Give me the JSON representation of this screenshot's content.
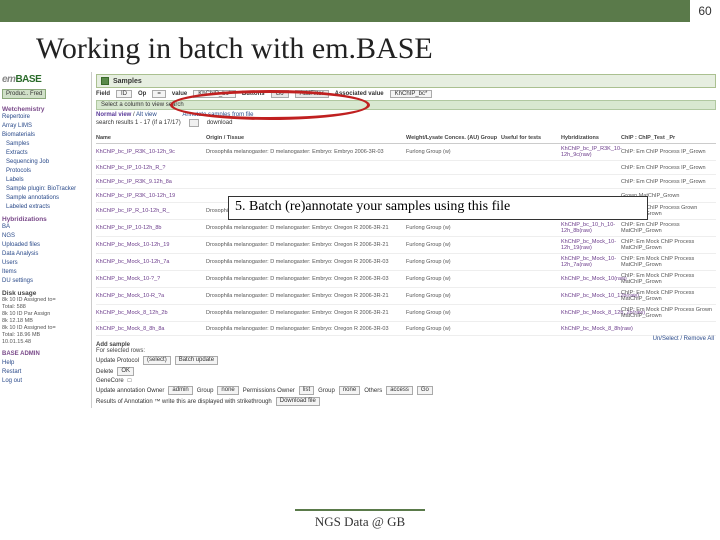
{
  "slide": {
    "number": "60",
    "title": "Working in batch with em.BASE",
    "footer": "NGS Data @ GB",
    "accent_color": "#5a7a4a"
  },
  "callout": "5. Batch (re)annotate your samples using this file",
  "logo": {
    "prefix": "em",
    "suffix": "BASE"
  },
  "sidebar": {
    "button": "Produc.. Fred",
    "groups": [
      {
        "label": "Wetchemistry",
        "items": [
          "Repertoire",
          "Array LIMS",
          "Biomaterials"
        ]
      },
      {
        "label": "",
        "items": [
          "Samples",
          "Extracts",
          "Sequencing Job",
          "Protocols",
          "Labels",
          "Sample plugin: BioTracker",
          "Sample annotations",
          "Labeled extracts"
        ]
      },
      {
        "label": "Hybridizations",
        "items": [
          "BA",
          "NGS",
          "Uploaded files",
          "Data Analysis"
        ]
      },
      {
        "label": "",
        "items": [
          "Users",
          "Items",
          "DU settings"
        ]
      }
    ],
    "info_title": "Disk usage",
    "info_lines": [
      "8k 10 ID Assigned to=",
      "Total: 588",
      "8k 10 ID Par Assign",
      "8k 12.18 MB",
      "8k 10 ID Assigned to=",
      "Total: 18.96 MB",
      "10.01.15.48"
    ],
    "bottom": [
      "BASE ADMIN",
      "Help",
      "Restart",
      "Log out"
    ]
  },
  "content": {
    "crumb": "Samples",
    "filters": {
      "field_label": "Field",
      "field_value": "ID",
      "op_label": "Op",
      "op_value": "=",
      "value_label": "value",
      "value_value": "KhChIP_bc*",
      "buttons_label": "Buttons",
      "btn1": "Go",
      "btn2": "AddFilter",
      "assoc_label": "Associated value",
      "assoc_value": "KhChIP_bc*"
    },
    "hint": "Select a column to view search",
    "view": {
      "normal": "Normal view",
      "sep": "/",
      "alt": "Alt view",
      "annotate": "Annotate samples from file",
      "results": "search results 1 - 17 (if a 17/17)",
      "download": "download"
    },
    "columns": [
      "Name",
      "Origin / Tissue",
      "Weight/Lysate Conces. (AU) Group",
      "Useful for tests",
      "Hybridizations",
      "ChIP : ChIP_Test _Pr"
    ],
    "rows": [
      {
        "name": "KhChIP_bc_IP_R3K_10-12h_9c",
        "origin": "Drosophila melanogaster: D melanogaster: Embryo: Embryo 2006-3R-03",
        "group": "Furlong Group (w)",
        "tests": "",
        "hyb": "KhChIP_bc_IP_R3K_10-12h_9c(raw)",
        "pr": "ChIP: Em ChIP Process IP_Grown"
      },
      {
        "name": "KhChIP_bc_IP_10-12h_R_?",
        "origin": "",
        "group": "",
        "tests": "",
        "hyb": "",
        "pr": "ChIP: Em ChIP Process IP_Grown"
      },
      {
        "name": "KhChIP_bc_IP_R3K_9.12h_8a",
        "origin": "",
        "group": "",
        "tests": "",
        "hyb": "",
        "pr": "ChIP: Em ChIP Process IP_Grown"
      },
      {
        "name": "KhChIP_bc_IP_R3K_10-12h_19",
        "origin": "",
        "group": "",
        "tests": "",
        "hyb": "",
        "pr": "Grown MatChIP_Grown"
      },
      {
        "name": "KhChIP_bc_IP_R_10-12h_R_",
        "origin": "Drosophila melanogaster: D melanogaster: Embryo: Embryo 2006-3R-03",
        "group": "Furlong Group (w)",
        "tests": "",
        "hyb": "KhChIP_bc_10_h_10-12h_R(raw)",
        "pr": "ChIP: Em ChIP Process Grown MatChIP_Grown"
      },
      {
        "name": "KhChIP_bc_IP_10-12h_8b",
        "origin": "Drosophila melanogaster: D melanogaster: Embryo: Oregon R 2006-3R-21",
        "group": "Furlong Group (w)",
        "tests": "",
        "hyb": "KhChIP_bc_10_h_10-12h_8b(raw)",
        "pr": "ChIP: Em ChIP Process MatChIP_Grown"
      },
      {
        "name": "KhChIP_bc_Mock_10-12h_19",
        "origin": "Drosophila melanogaster: D melanogaster: Embryo: Oregon R 2006-3R-21",
        "group": "Furlong Group (w)",
        "tests": "",
        "hyb": "KhChIP_bc_Mock_10-12h_19(raw)",
        "pr": "ChIP: Em Mock ChIP Process MatChIP_Grown"
      },
      {
        "name": "KhChIP_bc_Mock_10-12h_7a",
        "origin": "Drosophila melanogaster: D melanogaster: Embryo: Oregon R 2006-3R-03",
        "group": "Furlong Group (w)",
        "tests": "",
        "hyb": "KhChIP_bc_Mock_10-12h_7a(raw)",
        "pr": "ChIP: Em Mock ChIP Process MatChIP_Grown"
      },
      {
        "name": "KhChIP_bc_Mock_10-?_?",
        "origin": "Drosophila melanogaster: D melanogaster: Embryo: Oregon R 2006-3R-03",
        "group": "Furlong Group (w)",
        "tests": "",
        "hyb": "KhChIP_bc_Mock_10(raw)",
        "pr": "ChIP: Em Mock ChIP Process MatChIP_Grown"
      },
      {
        "name": "KhChIP_bc_Mock_10-R_?a",
        "origin": "Drosophila melanogaster: D melanogaster: Embryo: Oregon R 2006-3R-21",
        "group": "Furlong Group (w)",
        "tests": "",
        "hyb": "KhChIP_bc_Mock_10_12h(raw)",
        "pr": "ChIP: Em Mock ChIP Process MatChIP_Grown"
      },
      {
        "name": "KhChIP_bc_Mock_8_12h_2b",
        "origin": "Drosophila melanogaster: D melanogaster: Embryo: Oregon R 2006-3R-21",
        "group": "Furlong Group (w)",
        "tests": "",
        "hyb": "KhChIP_bc_Mock_8_12h_2b(raw)",
        "pr": "ChIP: Em Mock ChIP Process Grown MatChIP_Grown"
      },
      {
        "name": "KhChIP_bc_Mock_8_8h_8a",
        "origin": "Drosophila melanogaster: D melanogaster: Embryo: Oregon R 2006-3R-03",
        "group": "Furlong Group (w)",
        "tests": "",
        "hyb": "KhChIP_bc_Mock_8_8h(raw)",
        "pr": ""
      }
    ],
    "add": {
      "title": "Add sample",
      "subtitle": "For selected rows:",
      "row1_label": "Update Protocol",
      "row1_sel": "(select)",
      "row1_btn": "Batch update",
      "row2_label": "Delete",
      "row2_btn": "OK",
      "gene_label": "GeneCore",
      "gene_sq": "□",
      "row3_parts": [
        "Update annotation  Owner",
        "admin",
        "Group",
        "none",
        "Permissions  Owner",
        "list",
        "Group",
        "none",
        "Others",
        "access"
      ],
      "row3_btn": "Go",
      "note": "Results of Annotation ™ write this are displayed with strikethrough",
      "note_btn": "Download file"
    },
    "footer_link": "Un/Select / Remove All"
  }
}
